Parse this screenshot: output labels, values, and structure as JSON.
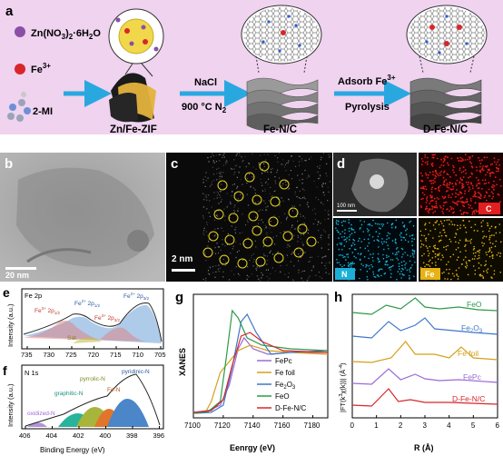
{
  "panel_a": {
    "letter": "a",
    "reagents": {
      "zn": "Zn(NO",
      "zn_sub1": "3",
      "zn_mid": ")",
      "zn_sub2": "2",
      "zn_tail": "·6H",
      "zn_sub3": "2",
      "zn_end": "O",
      "fe": "Fe",
      "fe_sup": "3+",
      "mi": "2-MI"
    },
    "zif_label": "Zn/Fe-ZIF",
    "step1_top": "NaCl",
    "step1_bottom_pre": "900 °C  N",
    "step1_bottom_sub": "2",
    "fenc_label": "Fe-N/C",
    "step2_top_pre": "Adsorb Fe",
    "step2_top_sup": "3+",
    "step2_bottom": "Pyrolysis",
    "dfenc_label": "D-Fe-N/C",
    "colors": {
      "background": "#efd3ef",
      "arrow": "#29a8e0",
      "zn_dot": "#8b4fa6",
      "fe_dot": "#d8262a"
    }
  },
  "panel_b": {
    "letter": "b",
    "scalebar": "20 nm"
  },
  "panel_c": {
    "letter": "c",
    "scalebar": "2 nm"
  },
  "panel_d": {
    "letter": "d",
    "scalebar": "100 nm",
    "maps": [
      {
        "label": "C",
        "color": "#e11f1f"
      },
      {
        "label": "N",
        "color": "#1cb0d8"
      },
      {
        "label": "Fe",
        "color": "#e6b214"
      }
    ]
  },
  "panel_e": {
    "letter": "e",
    "title": "Fe 2p",
    "xlabel": "Binding Energy (eV)",
    "ylabel": "Intensity (a.u.)",
    "ticks": [
      "735",
      "730",
      "725",
      "720",
      "715",
      "710",
      "705"
    ],
    "peaks": [
      {
        "pre": "Fe",
        "sup": "3+",
        "post": " 2p",
        "sub": "1/2"
      },
      {
        "pre": "Fe",
        "sup": "2+",
        "post": " 2p",
        "sub": "1/2"
      },
      {
        "pre": "Fe",
        "sup": "3+",
        "post": " 2p",
        "sub": "3/2"
      },
      {
        "pre": "Fe",
        "sup": "2+",
        "post": " 2p",
        "sub": "3/2"
      }
    ],
    "sat": "Sat."
  },
  "panel_f": {
    "letter": "f",
    "title": "N 1s",
    "xlabel": "Binding Energy (eV)",
    "ylabel": "Intensity (a.u.)",
    "ticks": [
      "406",
      "404",
      "402",
      "400",
      "398",
      "396"
    ],
    "species": [
      {
        "label": "oxidized-N",
        "color": "#b394d6"
      },
      {
        "label": "graphitic-N",
        "color": "#2ab39b"
      },
      {
        "label": "pyrrolic-N",
        "color": "#a7b63a"
      },
      {
        "label": "Fe-N",
        "color": "#e0762b"
      },
      {
        "label": "pyridinic-N",
        "color": "#4a86c8"
      }
    ]
  },
  "chart_data": [
    {
      "type": "line",
      "panel": "g",
      "xlabel": "Eenrgy (eV)",
      "ylabel": "XANES",
      "xlim": [
        7100,
        7190
      ],
      "x_ticks": [
        "7100",
        "7120",
        "7140",
        "7160",
        "7180"
      ],
      "series": [
        {
          "name": "FePc",
          "color": "#9b6ad6"
        },
        {
          "name": "Fe foil",
          "color": "#d4a017"
        },
        {
          "name": "Fe2O3",
          "label_pre": "Fe",
          "label_sub1": "2",
          "label_mid": "O",
          "label_sub2": "3",
          "color": "#3f77c8"
        },
        {
          "name": "FeO",
          "color": "#2e9a4a"
        },
        {
          "name": "D-Fe-N/C",
          "color": "#d8262a"
        }
      ]
    },
    {
      "type": "line",
      "panel": "h",
      "xlabel": "R (Å)",
      "ylabel_pre": "|FT(k",
      "ylabel_sup1": "3",
      "ylabel_mid": "χ(k))| (Å",
      "ylabel_sup2": "-4",
      "ylabel_end": ")",
      "xlim": [
        0,
        6
      ],
      "x_ticks": [
        "0",
        "1",
        "2",
        "3",
        "4",
        "5",
        "6"
      ],
      "series": [
        {
          "name": "FeO",
          "color": "#2e9a4a"
        },
        {
          "name": "Fe2O3",
          "label_pre": "Fe",
          "label_sub1": "2",
          "label_mid": "O",
          "label_sub2": "3",
          "color": "#3f77c8"
        },
        {
          "name": "Fe foil",
          "color": "#d4a017"
        },
        {
          "name": "FePc",
          "color": "#9b6ad6"
        },
        {
          "name": "D-Fe-N/C",
          "color": "#d8262a"
        }
      ]
    }
  ]
}
